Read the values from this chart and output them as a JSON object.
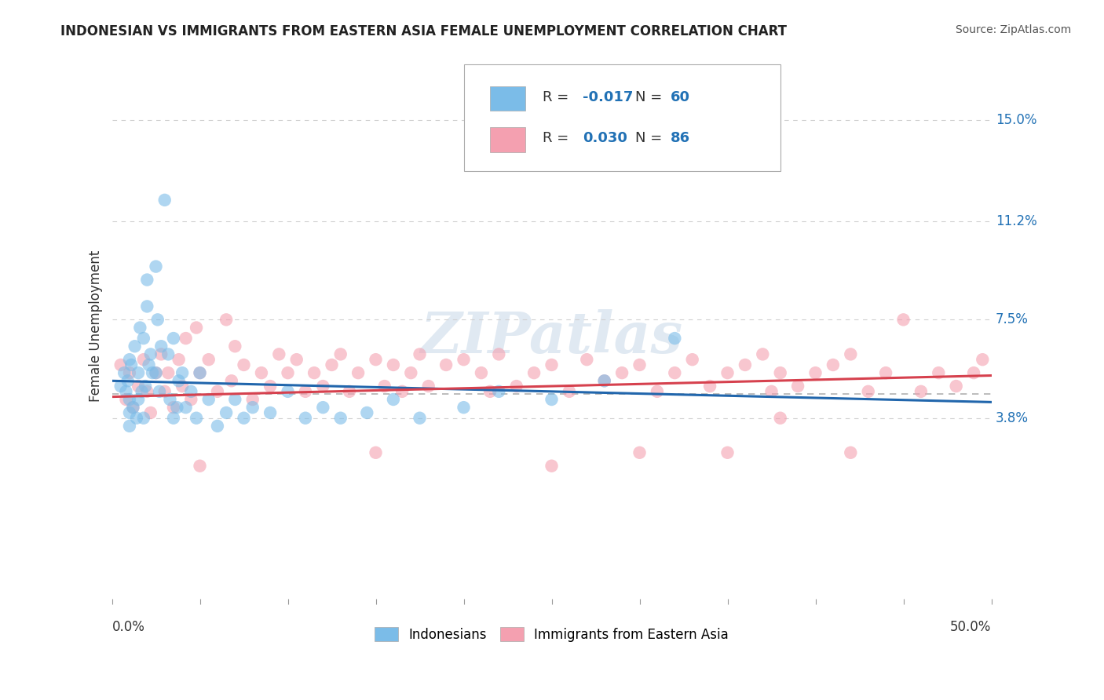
{
  "title": "INDONESIAN VS IMMIGRANTS FROM EASTERN ASIA FEMALE UNEMPLOYMENT CORRELATION CHART",
  "source": "Source: ZipAtlas.com",
  "ylabel": "Female Unemployment",
  "xlim": [
    0.0,
    0.5
  ],
  "ylim": [
    -0.03,
    0.175
  ],
  "yticks": [
    0.038,
    0.075,
    0.112,
    0.15
  ],
  "ytick_labels": [
    "3.8%",
    "7.5%",
    "11.2%",
    "15.0%"
  ],
  "xtick_left_label": "0.0%",
  "xtick_right_label": "50.0%",
  "blue_color": "#7bbce8",
  "pink_color": "#f4a0b0",
  "blue_edge_color": "#5a9fd4",
  "pink_edge_color": "#e07090",
  "blue_R": "-0.017",
  "blue_N": "60",
  "pink_R": "0.030",
  "pink_N": "86",
  "legend_label_blue": "Indonesians",
  "legend_label_pink": "Immigrants from Eastern Asia",
  "watermark_text": "ZIPatlas",
  "blue_scatter_x": [
    0.005,
    0.007,
    0.008,
    0.009,
    0.01,
    0.01,
    0.01,
    0.01,
    0.011,
    0.012,
    0.013,
    0.014,
    0.015,
    0.015,
    0.016,
    0.017,
    0.018,
    0.018,
    0.019,
    0.02,
    0.02,
    0.021,
    0.022,
    0.023,
    0.025,
    0.025,
    0.026,
    0.027,
    0.028,
    0.03,
    0.032,
    0.033,
    0.035,
    0.035,
    0.037,
    0.038,
    0.04,
    0.042,
    0.045,
    0.048,
    0.05,
    0.055,
    0.06,
    0.065,
    0.07,
    0.075,
    0.08,
    0.09,
    0.1,
    0.11,
    0.12,
    0.13,
    0.145,
    0.16,
    0.175,
    0.2,
    0.22,
    0.25,
    0.28,
    0.32
  ],
  "blue_scatter_y": [
    0.05,
    0.055,
    0.048,
    0.052,
    0.06,
    0.04,
    0.035,
    0.045,
    0.058,
    0.042,
    0.065,
    0.038,
    0.055,
    0.045,
    0.072,
    0.048,
    0.068,
    0.038,
    0.05,
    0.08,
    0.09,
    0.058,
    0.062,
    0.055,
    0.095,
    0.055,
    0.075,
    0.048,
    0.065,
    0.12,
    0.062,
    0.045,
    0.068,
    0.038,
    0.042,
    0.052,
    0.055,
    0.042,
    0.048,
    0.038,
    0.055,
    0.045,
    0.035,
    0.04,
    0.045,
    0.038,
    0.042,
    0.04,
    0.048,
    0.038,
    0.042,
    0.038,
    0.04,
    0.045,
    0.038,
    0.042,
    0.048,
    0.045,
    0.052,
    0.068
  ],
  "pink_scatter_x": [
    0.005,
    0.008,
    0.01,
    0.012,
    0.015,
    0.018,
    0.02,
    0.022,
    0.025,
    0.028,
    0.03,
    0.032,
    0.035,
    0.038,
    0.04,
    0.042,
    0.045,
    0.048,
    0.05,
    0.055,
    0.06,
    0.065,
    0.068,
    0.07,
    0.075,
    0.08,
    0.085,
    0.09,
    0.095,
    0.1,
    0.105,
    0.11,
    0.115,
    0.12,
    0.125,
    0.13,
    0.135,
    0.14,
    0.15,
    0.155,
    0.16,
    0.165,
    0.17,
    0.175,
    0.18,
    0.19,
    0.2,
    0.21,
    0.215,
    0.22,
    0.23,
    0.24,
    0.25,
    0.26,
    0.27,
    0.28,
    0.29,
    0.3,
    0.31,
    0.32,
    0.33,
    0.34,
    0.35,
    0.36,
    0.37,
    0.375,
    0.38,
    0.39,
    0.4,
    0.41,
    0.42,
    0.43,
    0.44,
    0.45,
    0.46,
    0.47,
    0.48,
    0.49,
    0.495,
    0.38,
    0.42,
    0.35,
    0.3,
    0.25,
    0.15,
    0.05
  ],
  "pink_scatter_y": [
    0.058,
    0.045,
    0.055,
    0.042,
    0.05,
    0.06,
    0.048,
    0.04,
    0.055,
    0.062,
    0.048,
    0.055,
    0.042,
    0.06,
    0.05,
    0.068,
    0.045,
    0.072,
    0.055,
    0.06,
    0.048,
    0.075,
    0.052,
    0.065,
    0.058,
    0.045,
    0.055,
    0.05,
    0.062,
    0.055,
    0.06,
    0.048,
    0.055,
    0.05,
    0.058,
    0.062,
    0.048,
    0.055,
    0.06,
    0.05,
    0.058,
    0.048,
    0.055,
    0.062,
    0.05,
    0.058,
    0.06,
    0.055,
    0.048,
    0.062,
    0.05,
    0.055,
    0.058,
    0.048,
    0.06,
    0.052,
    0.055,
    0.058,
    0.048,
    0.055,
    0.06,
    0.05,
    0.055,
    0.058,
    0.062,
    0.048,
    0.055,
    0.05,
    0.055,
    0.058,
    0.062,
    0.048,
    0.055,
    0.075,
    0.048,
    0.055,
    0.05,
    0.055,
    0.06,
    0.038,
    0.025,
    0.025,
    0.025,
    0.02,
    0.025,
    0.02
  ],
  "bg_color": "#ffffff",
  "grid_color": "#d0d0d0",
  "dashed_line_y": 0.047,
  "trend_blue_start_x": 0.0,
  "trend_blue_start_y": 0.052,
  "trend_blue_end_x": 0.5,
  "trend_blue_end_y": 0.044,
  "trend_pink_start_x": 0.0,
  "trend_pink_start_y": 0.046,
  "trend_pink_end_x": 0.5,
  "trend_pink_end_y": 0.054,
  "title_color": "#222222",
  "source_color": "#555555",
  "ytick_color": "#2171b5",
  "trend_blue_color": "#2166ac",
  "trend_pink_color": "#d6414e"
}
